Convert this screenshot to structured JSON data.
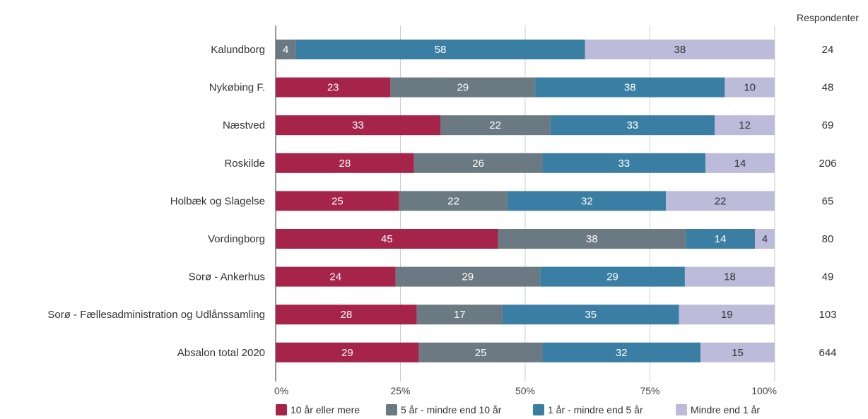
{
  "chart_data": {
    "type": "bar",
    "orientation": "horizontal",
    "stacked": true,
    "categories": [
      "Kalundborg",
      "Nykøbing F.",
      "Næstved",
      "Roskilde",
      "Holbæk og Slagelse",
      "Vordingborg",
      "Sorø - Ankerhus",
      "Sorø - Fællesadministration og Udlånssamling",
      "Absalon total 2020"
    ],
    "series": [
      {
        "name": "10 år eller mere",
        "color": "#a6234a",
        "label_color": "#ffffff",
        "values": [
          0,
          23,
          33,
          28,
          25,
          45,
          24,
          28,
          29
        ]
      },
      {
        "name": "5 år - mindre end 10 år",
        "color": "#6b7a82",
        "label_color": "#ffffff",
        "values": [
          4,
          29,
          22,
          26,
          22,
          38,
          29,
          17,
          25
        ]
      },
      {
        "name": "1 år - mindre end 5 år",
        "color": "#3a7fa3",
        "label_color": "#ffffff",
        "values": [
          58,
          38,
          33,
          33,
          32,
          14,
          29,
          35,
          32
        ]
      },
      {
        "name": "Mindre end 1 år",
        "color": "#bcbbd9",
        "label_color": "#333333",
        "values": [
          38,
          10,
          12,
          14,
          22,
          4,
          18,
          19,
          15
        ]
      }
    ],
    "respondents_header": "Respondenter",
    "respondents": [
      24,
      48,
      69,
      206,
      65,
      80,
      49,
      103,
      644
    ],
    "x_ticks": [
      "0%",
      "25%",
      "50%",
      "75%",
      "100%"
    ],
    "xlim": [
      0,
      100
    ],
    "grid": true,
    "legend_position": "bottom"
  }
}
